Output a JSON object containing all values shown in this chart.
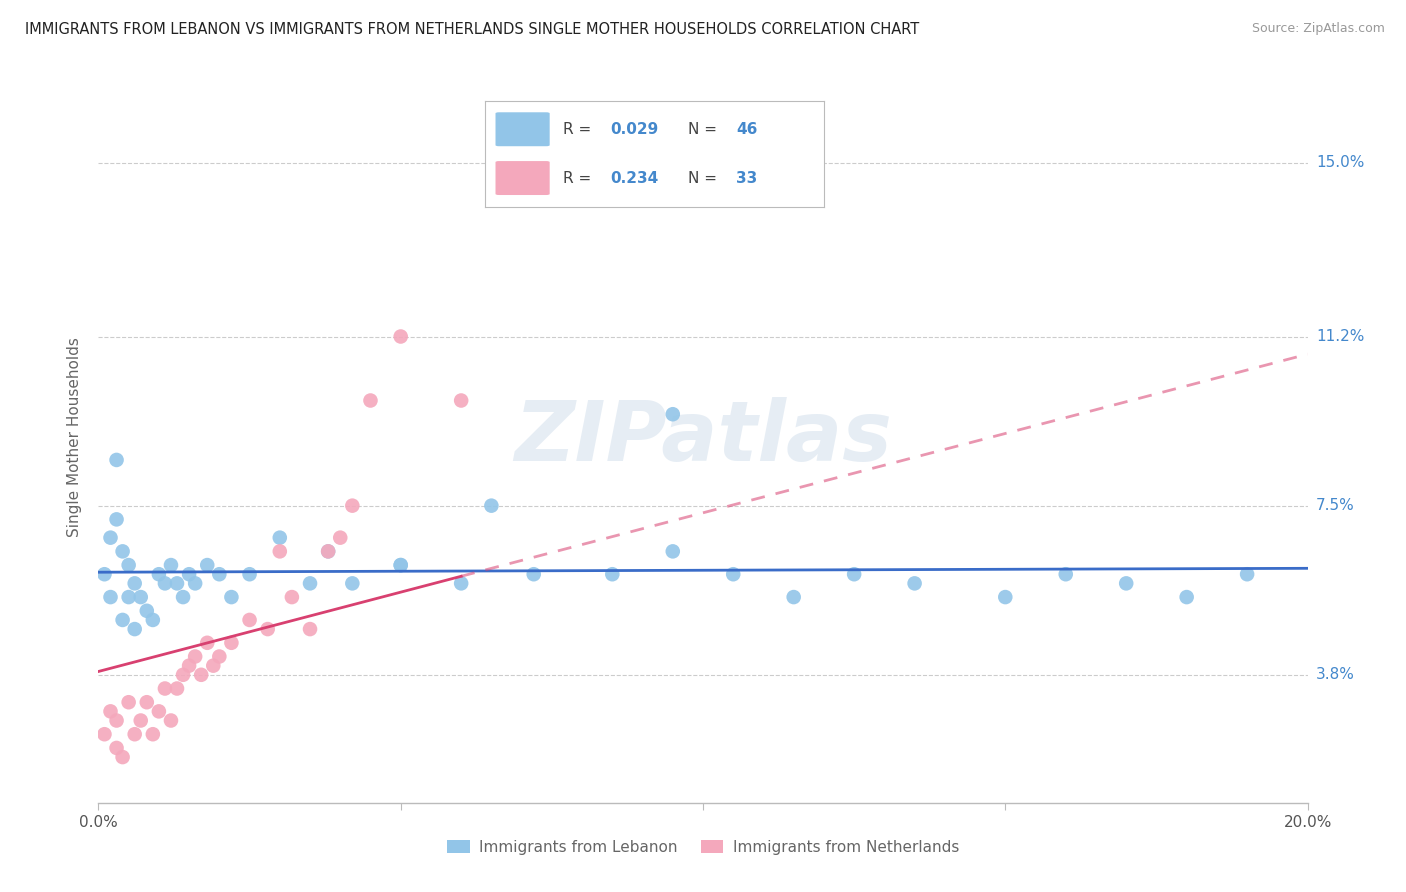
{
  "title": "IMMIGRANTS FROM LEBANON VS IMMIGRANTS FROM NETHERLANDS SINGLE MOTHER HOUSEHOLDS CORRELATION CHART",
  "source": "Source: ZipAtlas.com",
  "ylabel": "Single Mother Households",
  "ytick_labels": [
    "3.8%",
    "7.5%",
    "11.2%",
    "15.0%"
  ],
  "ytick_values": [
    0.038,
    0.075,
    0.112,
    0.15
  ],
  "xlim": [
    0.0,
    0.2
  ],
  "ylim": [
    0.01,
    0.17
  ],
  "lebanon_color": "#92C5E8",
  "netherlands_color": "#F4A8BC",
  "lebanon_R": 0.029,
  "lebanon_N": 46,
  "netherlands_R": 0.234,
  "netherlands_N": 33,
  "lebanon_trend_color": "#3A6CC8",
  "netherlands_trend_color": "#D84070",
  "grid_color": "#CCCCCC",
  "background_color": "#FFFFFF",
  "legend_label_1": "Immigrants from Lebanon",
  "legend_label_2": "Immigrants from Netherlands",
  "watermark": "ZIPatlas",
  "leb_x": [
    0.001,
    0.002,
    0.002,
    0.003,
    0.003,
    0.004,
    0.004,
    0.005,
    0.005,
    0.006,
    0.006,
    0.007,
    0.008,
    0.009,
    0.01,
    0.011,
    0.012,
    0.013,
    0.014,
    0.015,
    0.016,
    0.018,
    0.02,
    0.022,
    0.025,
    0.03,
    0.035,
    0.038,
    0.042,
    0.05,
    0.06,
    0.072,
    0.085,
    0.095,
    0.105,
    0.115,
    0.125,
    0.135,
    0.15,
    0.16,
    0.17,
    0.18,
    0.19,
    0.095,
    0.05,
    0.065
  ],
  "leb_y": [
    0.06,
    0.068,
    0.055,
    0.085,
    0.072,
    0.065,
    0.05,
    0.062,
    0.055,
    0.058,
    0.048,
    0.055,
    0.052,
    0.05,
    0.06,
    0.058,
    0.062,
    0.058,
    0.055,
    0.06,
    0.058,
    0.062,
    0.06,
    0.055,
    0.06,
    0.068,
    0.058,
    0.065,
    0.058,
    0.062,
    0.058,
    0.06,
    0.06,
    0.095,
    0.06,
    0.055,
    0.06,
    0.058,
    0.055,
    0.06,
    0.058,
    0.055,
    0.06,
    0.065,
    0.062,
    0.075
  ],
  "neth_x": [
    0.001,
    0.002,
    0.003,
    0.003,
    0.004,
    0.005,
    0.006,
    0.007,
    0.008,
    0.009,
    0.01,
    0.011,
    0.012,
    0.013,
    0.014,
    0.015,
    0.016,
    0.017,
    0.018,
    0.019,
    0.02,
    0.022,
    0.025,
    0.028,
    0.03,
    0.032,
    0.035,
    0.038,
    0.04,
    0.042,
    0.045,
    0.05,
    0.06
  ],
  "neth_y": [
    0.025,
    0.03,
    0.028,
    0.022,
    0.02,
    0.032,
    0.025,
    0.028,
    0.032,
    0.025,
    0.03,
    0.035,
    0.028,
    0.035,
    0.038,
    0.04,
    0.042,
    0.038,
    0.045,
    0.04,
    0.042,
    0.045,
    0.05,
    0.048,
    0.065,
    0.055,
    0.048,
    0.065,
    0.068,
    0.075,
    0.098,
    0.112,
    0.098
  ]
}
